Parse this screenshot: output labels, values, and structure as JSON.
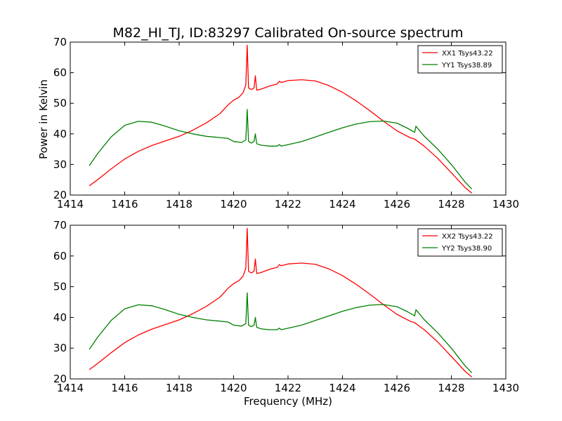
{
  "figure": {
    "title": "M82_HI_TJ, ID:83297 Calibrated On-source spectrum",
    "xlabel": "Frequency (MHz)",
    "ylabel": "Power in Kelvin"
  },
  "colors": {
    "series_1": "#ff0000",
    "series_2": "#008000",
    "axes": "#000000",
    "background": "#ffffff"
  },
  "chart_data": [
    {
      "type": "line",
      "title": "M82_HI_TJ, ID:83297 Calibrated On-source spectrum",
      "xlabel": "",
      "ylabel": "Power in Kelvin",
      "xlim": [
        1414,
        1430
      ],
      "ylim": [
        20,
        70
      ],
      "xticks": [
        1414,
        1416,
        1418,
        1420,
        1422,
        1424,
        1426,
        1428,
        1430
      ],
      "yticks": [
        20,
        30,
        40,
        50,
        60,
        70
      ],
      "grid": false,
      "legend": "top-right",
      "series": [
        {
          "name": "XX1 Tsys43.22",
          "color": "#ff0000",
          "x": [
            1414.7,
            1415.0,
            1415.5,
            1416.0,
            1416.5,
            1417.0,
            1417.5,
            1418.0,
            1418.5,
            1419.0,
            1419.5,
            1419.8,
            1420.0,
            1420.2,
            1420.35,
            1420.45,
            1420.5,
            1420.55,
            1420.65,
            1420.75,
            1420.8,
            1420.85,
            1421.0,
            1421.3,
            1421.6,
            1421.68,
            1421.75,
            1422.0,
            1422.5,
            1423.0,
            1423.5,
            1424.0,
            1424.5,
            1425.0,
            1425.5,
            1426.0,
            1426.5,
            1426.65,
            1427.0,
            1427.5,
            1428.0,
            1428.5,
            1428.75
          ],
          "y": [
            23,
            25,
            28.5,
            31.8,
            34.3,
            36.2,
            37.7,
            39.2,
            41.2,
            43.6,
            46.6,
            49.5,
            51,
            52,
            53.5,
            56,
            69,
            55,
            54.5,
            55,
            59,
            54.3,
            54.6,
            55.6,
            56.3,
            57.2,
            56.8,
            57.4,
            57.7,
            57.3,
            55.8,
            53.6,
            50.8,
            47.6,
            44.2,
            41,
            38.7,
            38.3,
            36,
            32,
            27.3,
            22.5,
            20.6
          ]
        },
        {
          "name": "YY1 Tsys38.89",
          "color": "#008000",
          "x": [
            1414.7,
            1415.0,
            1415.5,
            1416.0,
            1416.5,
            1417.0,
            1417.5,
            1418.0,
            1418.5,
            1419.0,
            1419.5,
            1419.8,
            1420.0,
            1420.3,
            1420.45,
            1420.5,
            1420.55,
            1420.65,
            1420.75,
            1420.8,
            1420.85,
            1421.0,
            1421.3,
            1421.6,
            1421.68,
            1421.75,
            1422.0,
            1422.5,
            1423.0,
            1423.5,
            1424.0,
            1424.5,
            1425.0,
            1425.5,
            1426.0,
            1426.4,
            1426.65,
            1426.7,
            1427.0,
            1427.5,
            1428.0,
            1428.5,
            1428.75
          ],
          "y": [
            29.6,
            33.5,
            39,
            42.8,
            44.1,
            43.8,
            42.5,
            41,
            40,
            39.2,
            38.8,
            38.5,
            37.5,
            37.2,
            38,
            48,
            37.5,
            37,
            37.5,
            40,
            36.8,
            36.3,
            36,
            36,
            36.5,
            36,
            36.5,
            37.5,
            39,
            40.5,
            42,
            43.2,
            44,
            44.2,
            43.5,
            41.8,
            40.5,
            42.5,
            39.3,
            35,
            30,
            24.3,
            22
          ]
        }
      ]
    },
    {
      "type": "line",
      "title": "",
      "xlabel": "Frequency (MHz)",
      "ylabel": "",
      "xlim": [
        1414,
        1430
      ],
      "ylim": [
        20,
        70
      ],
      "xticks": [
        1414,
        1416,
        1418,
        1420,
        1422,
        1424,
        1426,
        1428,
        1430
      ],
      "yticks": [
        20,
        30,
        40,
        50,
        60,
        70
      ],
      "grid": false,
      "legend": "top-right",
      "series": [
        {
          "name": "XX2 Tsys43.22",
          "color": "#ff0000",
          "x": [
            1414.7,
            1415.0,
            1415.5,
            1416.0,
            1416.5,
            1417.0,
            1417.5,
            1418.0,
            1418.5,
            1419.0,
            1419.5,
            1419.8,
            1420.0,
            1420.2,
            1420.35,
            1420.45,
            1420.5,
            1420.55,
            1420.65,
            1420.75,
            1420.8,
            1420.85,
            1421.0,
            1421.3,
            1421.6,
            1421.68,
            1421.75,
            1422.0,
            1422.5,
            1423.0,
            1423.5,
            1424.0,
            1424.5,
            1425.0,
            1425.5,
            1426.0,
            1426.5,
            1426.65,
            1427.0,
            1427.5,
            1428.0,
            1428.5,
            1428.75
          ],
          "y": [
            23,
            25,
            28.5,
            31.8,
            34.3,
            36.2,
            37.7,
            39.2,
            41.2,
            43.6,
            46.6,
            49.5,
            51,
            52,
            53.5,
            56,
            69,
            55,
            54.5,
            55,
            59,
            54.3,
            54.6,
            55.6,
            56.3,
            57.2,
            56.8,
            57.4,
            57.7,
            57.3,
            55.8,
            53.6,
            50.8,
            47.6,
            44.2,
            41,
            38.7,
            38.3,
            36,
            32,
            27.3,
            22.5,
            20.6
          ]
        },
        {
          "name": "YY2 Tsys38.90",
          "color": "#008000",
          "x": [
            1414.7,
            1415.0,
            1415.5,
            1416.0,
            1416.5,
            1417.0,
            1417.5,
            1418.0,
            1418.5,
            1419.0,
            1419.5,
            1419.8,
            1420.0,
            1420.3,
            1420.45,
            1420.5,
            1420.55,
            1420.65,
            1420.75,
            1420.8,
            1420.85,
            1421.0,
            1421.3,
            1421.6,
            1421.68,
            1421.75,
            1422.0,
            1422.5,
            1423.0,
            1423.5,
            1424.0,
            1424.5,
            1425.0,
            1425.5,
            1426.0,
            1426.4,
            1426.65,
            1426.7,
            1427.0,
            1427.5,
            1428.0,
            1428.5,
            1428.75
          ],
          "y": [
            29.6,
            33.5,
            39,
            42.8,
            44.1,
            43.8,
            42.5,
            41,
            40,
            39.2,
            38.8,
            38.5,
            37.5,
            37.2,
            38,
            48,
            37.5,
            37,
            37.5,
            40,
            36.8,
            36.3,
            36,
            36,
            36.5,
            36,
            36.5,
            37.5,
            39,
            40.5,
            42,
            43.2,
            44,
            44.2,
            43.5,
            41.8,
            40.5,
            42.5,
            39.3,
            35,
            30,
            24.3,
            22
          ]
        }
      ]
    }
  ]
}
